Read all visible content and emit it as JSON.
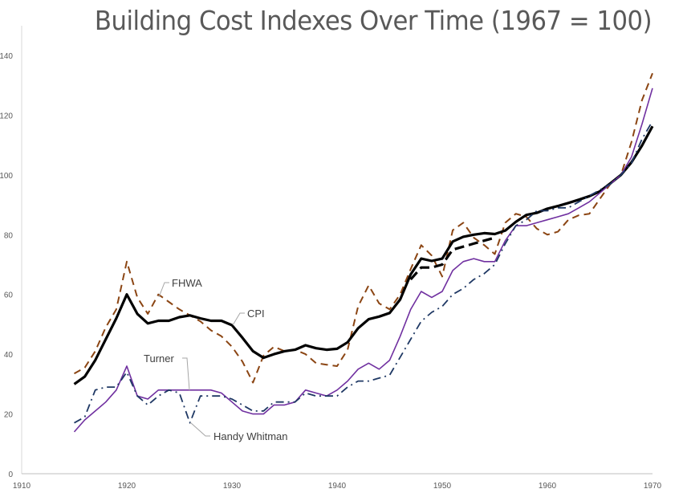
{
  "chart_data": {
    "type": "line",
    "title": "Building Cost Indexes Over Time (1967 = 100)",
    "xlabel": "",
    "ylabel": "",
    "xlim": [
      1910,
      1970
    ],
    "ylim": [
      0,
      140
    ],
    "x_ticks": [
      "1910",
      "1920",
      "1930",
      "1940",
      "1950",
      "1960",
      "1970"
    ],
    "y_ticks": [
      "0",
      "20",
      "40",
      "60",
      "80",
      "100",
      "120",
      "140"
    ],
    "grid": false,
    "legend": "none (direct labels)",
    "series": [
      {
        "name": "FHWA",
        "color": "#8B4513",
        "style": "dashed",
        "x_start": 1915,
        "values": [
          33.5,
          35.5,
          41,
          49,
          55,
          71,
          59,
          53.5,
          60,
          57.5,
          55,
          53,
          51,
          48,
          46,
          42.5,
          37.5,
          30.5,
          39.5,
          42.5,
          41,
          41.5,
          40,
          37,
          36.5,
          36,
          41.5,
          56,
          63,
          57,
          55,
          60,
          68.5,
          76.5,
          73,
          66,
          81.5,
          84,
          79,
          76.5,
          73.5,
          84,
          87,
          86,
          82,
          80,
          81,
          85,
          86.5,
          87,
          92,
          97,
          100,
          111,
          125,
          134
        ]
      },
      {
        "name": "CPI",
        "color": "#000000",
        "style": "solid-thick",
        "x_start": 1915,
        "values": [
          30,
          32.5,
          38,
          45,
          52,
          60,
          53.5,
          50.3,
          51.2,
          51.2,
          52.4,
          53,
          52,
          51.2,
          51.2,
          49.7,
          45.5,
          41,
          38.8,
          40,
          41,
          41.5,
          43,
          42,
          41.5,
          41.8,
          44,
          48.7,
          51.7,
          52.6,
          53.8,
          58.3,
          66.7,
          72,
          71.2,
          72,
          77.7,
          79.3,
          80,
          80.5,
          80.2,
          81.4,
          84.3,
          86.6,
          87.3,
          88.7,
          89.6,
          90.6,
          91.7,
          92.9,
          94.5,
          97.2,
          100,
          104.2,
          109.8,
          116.3
        ]
      },
      {
        "name": "Turner",
        "color": "#7030A0",
        "style": "solid",
        "x_start": 1915,
        "values": [
          14,
          18,
          21,
          24,
          28,
          36,
          26,
          25,
          28,
          28,
          28,
          28,
          28,
          28,
          27,
          24,
          21,
          20,
          20,
          23,
          23,
          24,
          28,
          27,
          26,
          28,
          31,
          35,
          37,
          35,
          38,
          46,
          55,
          61,
          59,
          61,
          68,
          71,
          72,
          71,
          71,
          78,
          83,
          83,
          84,
          85,
          86,
          87,
          89,
          91,
          94,
          97,
          100,
          106,
          117,
          129
        ]
      },
      {
        "name": "Handy Whitman",
        "color": "#1F3864",
        "style": "dash-dot",
        "x_start": 1915,
        "values": [
          17,
          19,
          28,
          29,
          29,
          34,
          26,
          23,
          26,
          28,
          27,
          17,
          26,
          26,
          26,
          25,
          23,
          21,
          21,
          24,
          24,
          24,
          27,
          26,
          26,
          26,
          29,
          31,
          31,
          32,
          33,
          39,
          45,
          51,
          54,
          56,
          60,
          62,
          65,
          67,
          70,
          77,
          83,
          85,
          88,
          88,
          89,
          89,
          91,
          93,
          95,
          97,
          100,
          104,
          112,
          118
        ]
      },
      {
        "name": "",
        "color": "#000000",
        "style": "dashed-thick",
        "x_start": 1947,
        "values": [
          65,
          69,
          69,
          70,
          75,
          76,
          77,
          78,
          79
        ]
      }
    ]
  }
}
